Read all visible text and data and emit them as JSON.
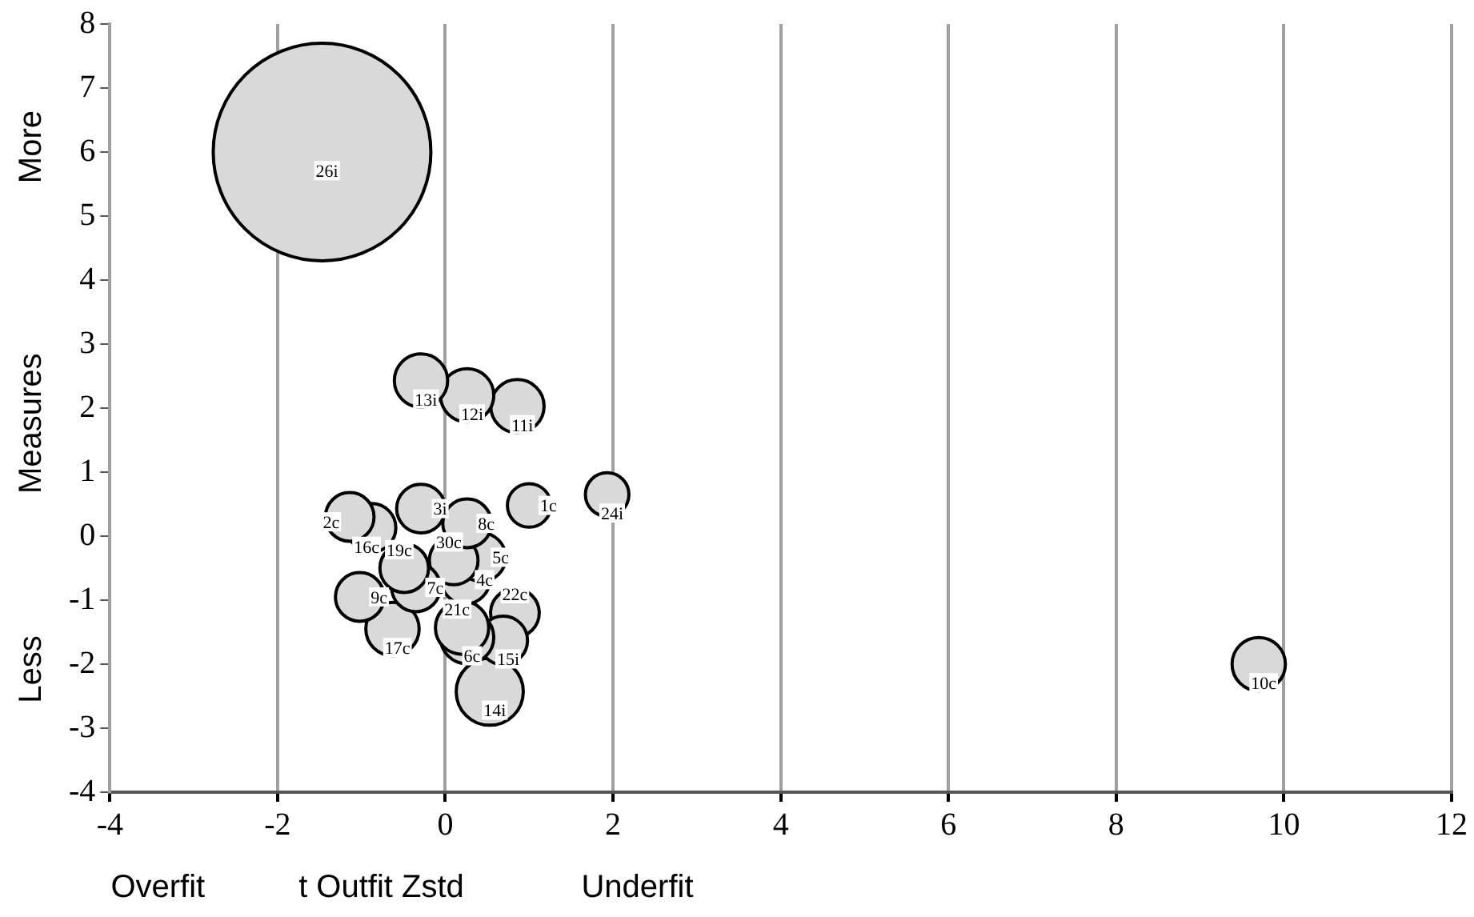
{
  "chart_data": {
    "type": "bubble",
    "xlabel": "t Outfit Zstd",
    "ylabel": "Measures",
    "annotations": [
      "Overfit",
      "Underfit",
      "More",
      "Less"
    ],
    "xlim": [
      -4,
      12
    ],
    "xticks": [
      -4,
      -2,
      0,
      2,
      4,
      6,
      8,
      10,
      12
    ],
    "ylim": [
      -4,
      8
    ],
    "yticks": [
      -4,
      -3,
      -2,
      -1,
      0,
      1,
      2,
      3,
      4,
      5,
      6,
      7,
      8
    ],
    "grid": "x",
    "series": [
      {
        "name": "26i",
        "color": "#d9d9d9",
        "x": [
          -1.47
        ],
        "values": [
          6.0
        ],
        "sizes": [
          1
        ]
      },
      {
        "name": "13i",
        "color": "#d9d9d9",
        "x": [
          -0.29
        ],
        "values": [
          2.43
        ],
        "sizes": [
          0.06
        ]
      },
      {
        "name": "12i",
        "color": "#d9d9d9",
        "x": [
          0.26
        ],
        "values": [
          2.2
        ],
        "sizes": [
          0.06
        ]
      },
      {
        "name": "11i",
        "color": "#d9d9d9",
        "x": [
          0.86
        ],
        "values": [
          2.03
        ],
        "sizes": [
          0.06
        ]
      },
      {
        "name": "1c",
        "color": "#d9d9d9",
        "x": [
          1.0
        ],
        "values": [
          0.48
        ],
        "sizes": [
          0.04
        ]
      },
      {
        "name": "24i",
        "color": "#d9d9d9",
        "x": [
          1.93
        ],
        "values": [
          0.65
        ],
        "sizes": [
          0.04
        ]
      },
      {
        "name": "3i",
        "color": "#d9d9d9",
        "x": [
          -0.29
        ],
        "values": [
          0.43
        ],
        "sizes": [
          0.05
        ]
      },
      {
        "name": "8c",
        "color": "#d9d9d9",
        "x": [
          0.26
        ],
        "values": [
          0.2
        ],
        "sizes": [
          0.05
        ]
      },
      {
        "name": "2c",
        "color": "#d9d9d9",
        "x": [
          -1.14
        ],
        "values": [
          0.3
        ],
        "sizes": [
          0.05
        ]
      },
      {
        "name": "16c",
        "color": "#d9d9d9",
        "x": [
          -0.88
        ],
        "values": [
          0.13
        ],
        "sizes": [
          0.05
        ]
      },
      {
        "name": "19c",
        "color": "#d9d9d9",
        "x": [
          -0.49
        ],
        "values": [
          -0.5
        ],
        "sizes": [
          0.05
        ]
      },
      {
        "name": "7c",
        "color": "#d9d9d9",
        "x": [
          -0.35
        ],
        "values": [
          -0.8
        ],
        "sizes": [
          0.05
        ]
      },
      {
        "name": "30c",
        "color": "#d9d9d9",
        "x": [
          0.1
        ],
        "values": [
          -0.38
        ],
        "sizes": [
          0.05
        ]
      },
      {
        "name": "5c",
        "color": "#d9d9d9",
        "x": [
          0.43
        ],
        "values": [
          -0.33
        ],
        "sizes": [
          0.05
        ]
      },
      {
        "name": "4c",
        "color": "#d9d9d9",
        "x": [
          0.24
        ],
        "values": [
          -0.68
        ],
        "sizes": [
          0.05
        ]
      },
      {
        "name": "9c",
        "color": "#d9d9d9",
        "x": [
          -1.02
        ],
        "values": [
          -0.95
        ],
        "sizes": [
          0.05
        ]
      },
      {
        "name": "17c",
        "color": "#d9d9d9",
        "x": [
          -0.63
        ],
        "values": [
          -1.45
        ],
        "sizes": [
          0.06
        ]
      },
      {
        "name": "21c",
        "color": "#d9d9d9",
        "x": [
          0.2
        ],
        "values": [
          -1.43
        ],
        "sizes": [
          0.06
        ]
      },
      {
        "name": "6c",
        "color": "#d9d9d9",
        "x": [
          0.26
        ],
        "values": [
          -1.58
        ],
        "sizes": [
          0.06
        ]
      },
      {
        "name": "15i",
        "color": "#d9d9d9",
        "x": [
          0.69
        ],
        "values": [
          -1.63
        ],
        "sizes": [
          0.05
        ]
      },
      {
        "name": "22c",
        "color": "#d9d9d9",
        "x": [
          0.83
        ],
        "values": [
          -1.2
        ],
        "sizes": [
          0.05
        ]
      },
      {
        "name": "14i",
        "color": "#d9d9d9",
        "x": [
          0.53
        ],
        "values": [
          -2.43
        ],
        "sizes": [
          0.095
        ]
      },
      {
        "name": "10c",
        "color": "#d9d9d9",
        "x": [
          9.7
        ],
        "values": [
          -2.0
        ],
        "sizes": [
          0.06
        ]
      }
    ]
  }
}
